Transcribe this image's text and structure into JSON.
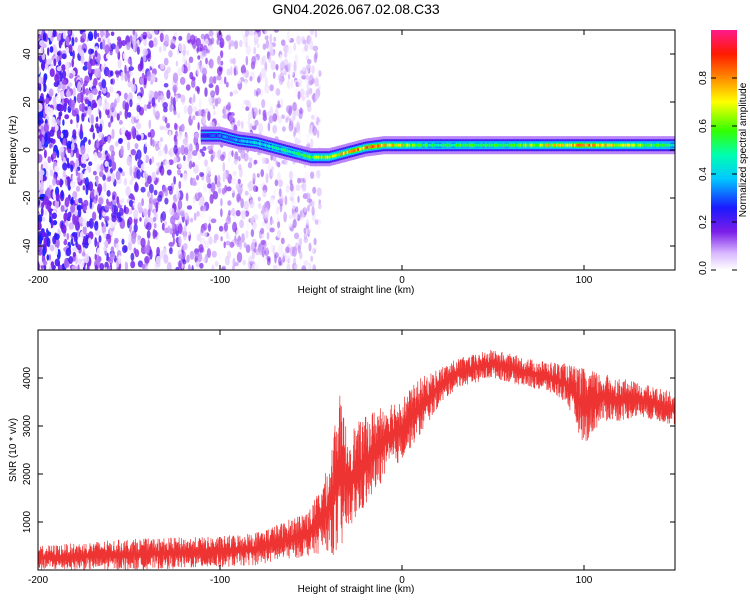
{
  "title": "GN04.2026.067.02.08.C33",
  "chart_data": [
    {
      "type": "heatmap",
      "xlabel": "Height of straight line (km)",
      "ylabel": "Frequency (Hz)",
      "xlim": [
        -200,
        150
      ],
      "ylim": [
        -50,
        50
      ],
      "xticks": [
        "-200",
        "-100",
        "0",
        "100"
      ],
      "yticks": [
        "40",
        "20",
        "0",
        "-20",
        "-40"
      ],
      "colorbar": {
        "label": "Normalized spectral amplitude",
        "range": [
          0,
          1
        ],
        "ticks": [
          "0.0",
          "0.2",
          "0.4",
          "0.6",
          "0.8"
        ]
      },
      "noise_region_x": [
        -200,
        -45
      ],
      "ridge": {
        "x": [
          -110,
          -100,
          -90,
          -80,
          -70,
          -60,
          -50,
          -45,
          -40,
          -30,
          -20,
          -10,
          0,
          10,
          20,
          40,
          60,
          80,
          100,
          120,
          150
        ],
        "frequency": [
          6,
          6,
          4,
          3,
          1,
          -1,
          -3,
          -3,
          -3,
          -1,
          1,
          2,
          2,
          2,
          2,
          2,
          2,
          2,
          2,
          2,
          2
        ],
        "peak_amplitude": [
          0.25,
          0.35,
          0.4,
          0.45,
          0.5,
          0.55,
          0.6,
          0.7,
          0.75,
          0.8,
          0.85,
          0.8,
          0.75,
          0.6,
          0.55,
          0.6,
          0.6,
          0.75,
          0.85,
          0.75,
          0.5
        ]
      }
    },
    {
      "type": "line",
      "xlabel": "Height of straight line (km)",
      "ylabel": "SNR (10 * v/v)",
      "xlim": [
        -200,
        150
      ],
      "ylim": [
        0,
        5000
      ],
      "xticks": [
        "-200",
        "-100",
        "0",
        "100"
      ],
      "yticks": [
        "1000",
        "2000",
        "3000",
        "4000"
      ],
      "color": "#ee3333",
      "envelope": {
        "x": [
          -200,
          -150,
          -100,
          -80,
          -65,
          -50,
          -40,
          -35,
          -30,
          -20,
          -10,
          0,
          10,
          20,
          30,
          40,
          50,
          60,
          70,
          80,
          90,
          100,
          110,
          120,
          130,
          140,
          150
        ],
        "low": [
          0,
          0,
          50,
          100,
          200,
          300,
          400,
          200,
          800,
          1300,
          1900,
          2300,
          2800,
          3400,
          3800,
          3900,
          4000,
          3900,
          3800,
          3700,
          3500,
          2600,
          3100,
          3100,
          3200,
          3100,
          3000
        ],
        "high": [
          500,
          650,
          700,
          800,
          1000,
          1300,
          2200,
          3800,
          2900,
          3200,
          3500,
          3600,
          4000,
          4200,
          4400,
          4500,
          4600,
          4500,
          4400,
          4350,
          4300,
          4200,
          4100,
          4000,
          3900,
          3800,
          3700
        ]
      }
    }
  ]
}
